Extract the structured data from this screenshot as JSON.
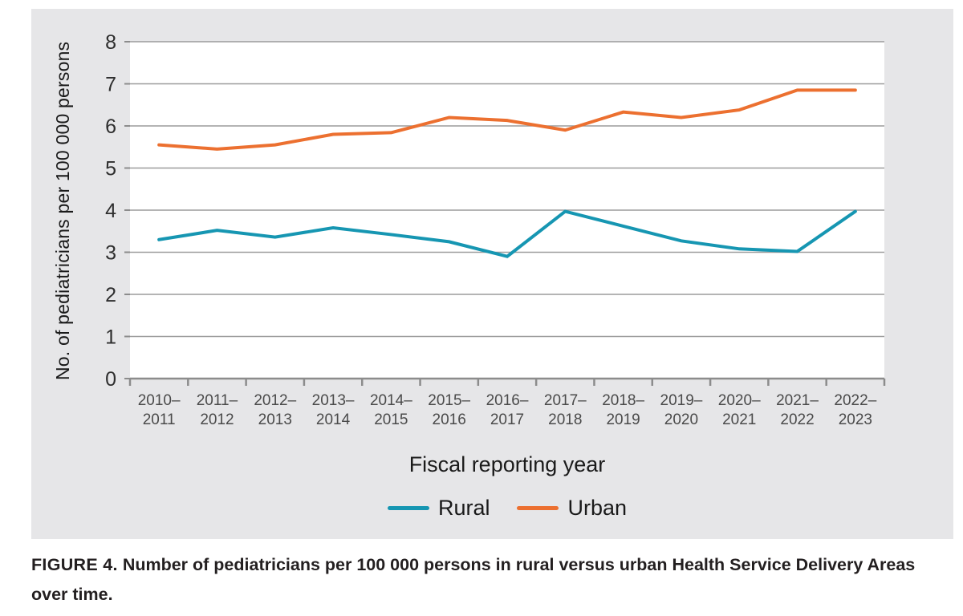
{
  "caption": {
    "label": "FIGURE 4.",
    "text": "Number of pediatricians per 100 000 persons in rural versus urban Health Service Delivery Areas over time."
  },
  "colors": {
    "panel_bg": "#E6E6E8",
    "plot_bg": "#FFFFFF",
    "gridline": "#9C9C9C",
    "axis": "#8C8C8C",
    "x_tick_label": "#4A4A4A",
    "y_tick_label": "#2E2E2E",
    "rural": "#1696B2",
    "urban": "#EC7030"
  },
  "chart_data": {
    "type": "line",
    "title": "",
    "xlabel": "Fiscal reporting year",
    "ylabel": "No. of pediatricians per 100 000 persons",
    "ylim": [
      0,
      8
    ],
    "yticks": [
      0,
      1,
      2,
      3,
      4,
      5,
      6,
      7,
      8
    ],
    "grid": true,
    "legend_position": "bottom",
    "categories": [
      "2010–2011",
      "2011–2012",
      "2012–2013",
      "2013–2014",
      "2014–2015",
      "2015–2016",
      "2016–2017",
      "2017–2018",
      "2018–2019",
      "2019–2020",
      "2020–2021",
      "2021–2022",
      "2022–2023"
    ],
    "series": [
      {
        "name": "Rural",
        "color": "#1696B2",
        "values": [
          3.3,
          3.52,
          3.36,
          3.58,
          3.42,
          3.25,
          2.9,
          3.97,
          3.62,
          3.27,
          3.08,
          3.02,
          3.97
        ]
      },
      {
        "name": "Urban",
        "color": "#EC7030",
        "values": [
          5.55,
          5.45,
          5.55,
          5.8,
          5.84,
          6.2,
          6.13,
          5.9,
          6.33,
          6.2,
          6.38,
          6.85,
          6.85
        ]
      }
    ]
  }
}
